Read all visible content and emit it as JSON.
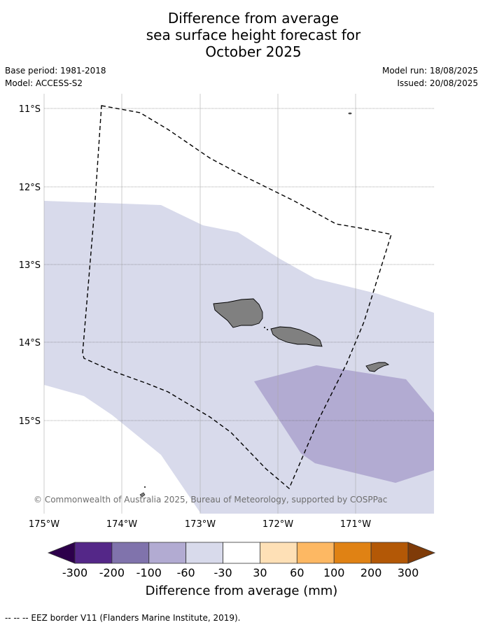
{
  "title": {
    "line1": "Difference from average",
    "line2": "sea surface height forecast for",
    "line3": "October 2025"
  },
  "meta": {
    "base_period": "Base period: 1981-2018",
    "model": "Model: ACCESS-S2",
    "model_run": "Model run: 18/08/2025",
    "issued": "Issued: 20/08/2025"
  },
  "map": {
    "lat_labels": [
      "11°S",
      "12°S",
      "13°S",
      "14°S",
      "15°S"
    ],
    "lon_labels": [
      "175°W",
      "174°W",
      "173°W",
      "172°W",
      "171°W"
    ],
    "credit": "© Commonwealth of Australia 2025, Bureau of Meteorology, supported by COSPPac",
    "land_color": "#808080",
    "eez_style": "dashed black"
  },
  "colorbar": {
    "tick_labels": [
      "-300",
      "-200",
      "-100",
      "-60",
      "-30",
      "30",
      "60",
      "100",
      "200",
      "300"
    ],
    "colors": [
      "#2d004b",
      "#542788",
      "#8073ac",
      "#b2abd2",
      "#d8daeb",
      "#ffffff",
      "#fee0b6",
      "#fdb863",
      "#e08214",
      "#b35806",
      "#7f3b08"
    ],
    "label": "Difference from average (mm)"
  },
  "footer": {
    "legend_text": "--  --  -- EEZ border V11 (Flanders Marine Institute, 2019)."
  }
}
